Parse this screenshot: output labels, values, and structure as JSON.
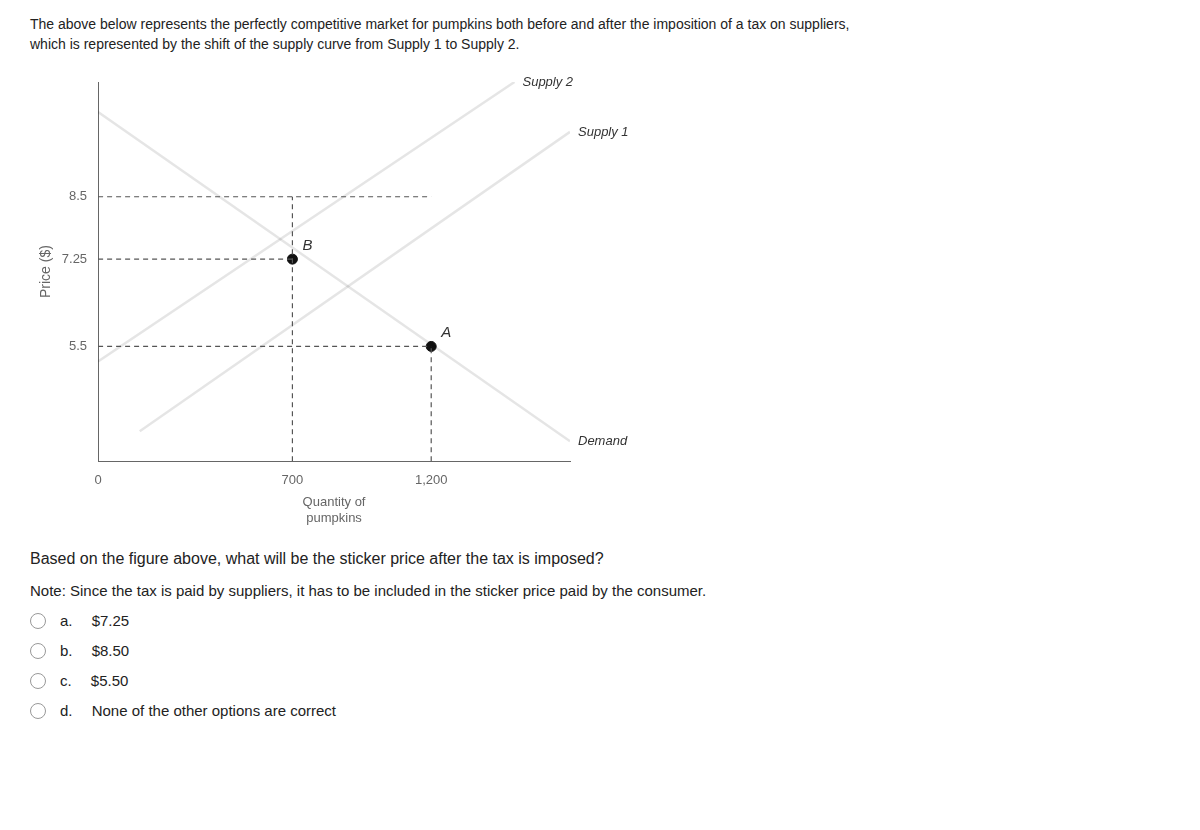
{
  "chart_data": {
    "type": "line",
    "title": "The above below represents the perfectly competitive market for pumpkins both before and after the imposition of a tax on suppliers,",
    "subtitle": "which is represented by the shift of the supply curve from Supply 1 to Supply 2.",
    "xlabel": "Quantity of\npumpkins",
    "ylabel": "Price ($)",
    "xlim": [
      0,
      1700
    ],
    "ylim": [
      3.2,
      10.8
    ],
    "xticks": [
      0,
      700,
      {
        "value": 1200,
        "label": "1,200"
      }
    ],
    "yticks": [
      5.5,
      7.25,
      8.5
    ],
    "grid": false,
    "series": [
      {
        "name": "Supply 1",
        "x": [
          150,
          1700
        ],
        "values": [
          3.8,
          9.8
        ]
      },
      {
        "name": "Supply 2",
        "x": [
          0,
          1500
        ],
        "values": [
          5.2,
          10.8
        ]
      },
      {
        "name": "Demand",
        "x": [
          0,
          1700
        ],
        "values": [
          10.2,
          3.6
        ]
      }
    ],
    "points": [
      {
        "label": "A",
        "x": 1200,
        "y": 5.5,
        "color": "#111111"
      },
      {
        "label": "B",
        "x": 700,
        "y": 7.25,
        "color": "#111111"
      }
    ],
    "dashed_lines": [
      {
        "x": [
          0,
          1200
        ],
        "y": [
          5.5,
          5.5
        ],
        "color": "#555555",
        "line_style": "dashed"
      },
      {
        "x": [
          1200,
          1200
        ],
        "y": [
          3.2,
          5.5
        ],
        "color": "#555555",
        "line_style": "dashed"
      },
      {
        "x": [
          0,
          700
        ],
        "y": [
          7.25,
          7.25
        ],
        "color": "#555555",
        "line_style": "dashed"
      },
      {
        "x": [
          700,
          700
        ],
        "y": [
          3.2,
          8.5
        ],
        "color": "#555555",
        "line_style": "dashed"
      },
      {
        "x": [
          0,
          1200
        ],
        "y": [
          8.5,
          8.5
        ],
        "color": "#555555",
        "line_style": "dashed"
      }
    ],
    "question": "Based on the figure above, what will be the sticker price after the tax is imposed?",
    "note": "Note: Since the tax is paid by suppliers, it has to be included in the sticker price paid by the consumer.",
    "options": [
      "a.  $7.25",
      "b.  $8.50",
      "c.  $5.50",
      "d.  None of the other options are correct"
    ]
  }
}
